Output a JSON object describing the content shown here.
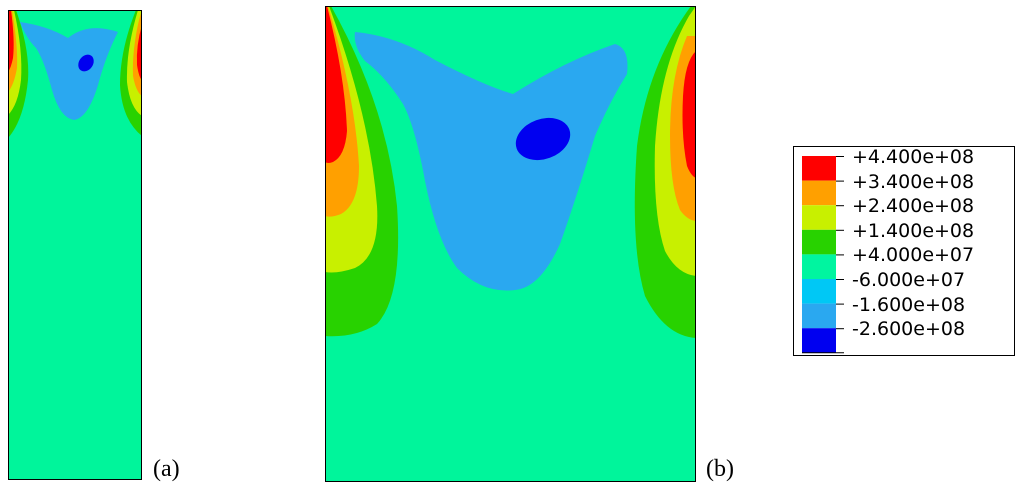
{
  "panels": [
    {
      "id": "a",
      "caption": "(a)"
    },
    {
      "id": "b",
      "caption": "(b)"
    }
  ],
  "legend": {
    "levels": [
      {
        "label": "+4.400e+08",
        "color": "#ff0000"
      },
      {
        "label": "+3.400e+08",
        "color": "#ffa000"
      },
      {
        "label": "+2.400e+08",
        "color": "#c8f000"
      },
      {
        "label": "+1.400e+08",
        "color": "#28d200"
      },
      {
        "label": "+4.000e+07",
        "color": "#00f5a0"
      },
      {
        "label": "-6.000e+07",
        "color": "#00c8f5"
      },
      {
        "label": "-1.600e+08",
        "color": "#2aa8f0"
      },
      {
        "label": "-2.600e+08",
        "color": "#0000f0"
      }
    ]
  },
  "colors": {
    "background_field": "#00f59b",
    "band_green": "#28d200",
    "band_yellow": "#c8f000",
    "band_orange": "#ffa000",
    "band_red": "#ff0000",
    "band_blue": "#2aa8f0",
    "band_darkblue": "#0000f0"
  }
}
